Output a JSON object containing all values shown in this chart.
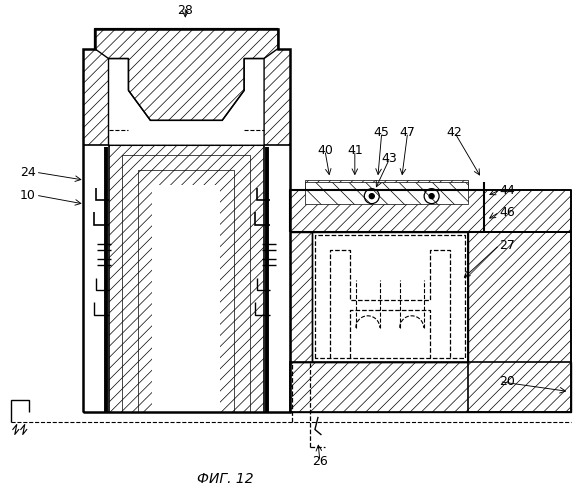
{
  "title": "ФИГ. 12",
  "background_color": "#ffffff",
  "fig_width": 5.86,
  "fig_height": 5.0,
  "dpi": 100
}
